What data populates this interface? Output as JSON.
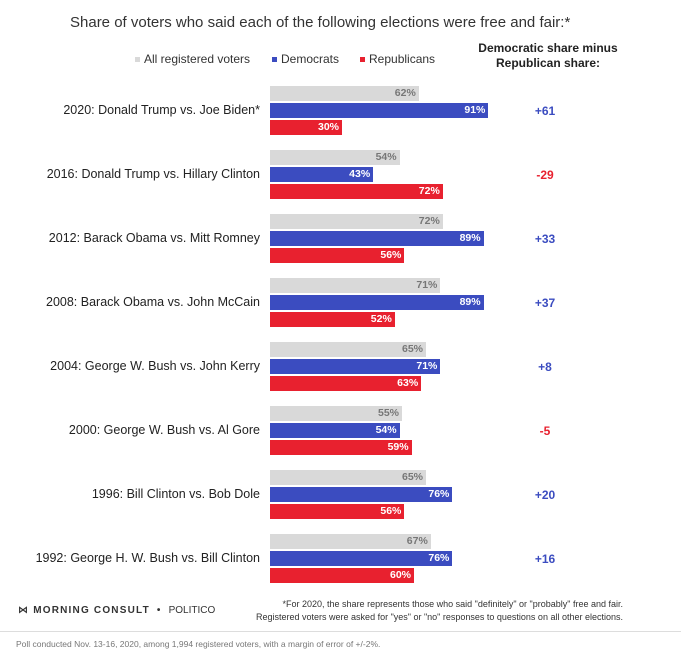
{
  "chart_data": {
    "type": "bar",
    "orientation": "horizontal",
    "title": "Share of voters who said each of the following elections were free and fair:*",
    "categories": [
      "2020: Donald Trump vs. Joe Biden*",
      "2016: Donald Trump vs. Hillary Clinton",
      "2012: Barack Obama vs. Mitt Romney",
      "2008: Barack Obama vs. John McCain",
      "2004: George W. Bush vs. John Kerry",
      "2000: George W. Bush vs. Al Gore",
      "1996: Bill Clinton vs. Bob Dole",
      "1992: George H. W. Bush vs. Bill Clinton"
    ],
    "series": [
      {
        "name": "All registered voters",
        "color": "#d9d9d9",
        "label_color": "#777777",
        "values": [
          62,
          54,
          72,
          71,
          65,
          55,
          65,
          67
        ]
      },
      {
        "name": "Democrats",
        "color": "#3b4cc0",
        "label_color": "#ffffff",
        "values": [
          91,
          43,
          89,
          89,
          71,
          54,
          76,
          76
        ]
      },
      {
        "name": "Republicans",
        "color": "#e8212f",
        "label_color": "#ffffff",
        "values": [
          30,
          72,
          56,
          52,
          63,
          59,
          56,
          60
        ]
      }
    ],
    "value_suffix": "%",
    "difference_header": [
      "Democratic share minus",
      "Republican share:"
    ],
    "differences": [
      "+61",
      "-29",
      "+33",
      "+37",
      "+8",
      "-5",
      "+20",
      "+16"
    ],
    "positive_color": "#3b4cc0",
    "negative_color": "#e8212f",
    "xlim": [
      0,
      100
    ]
  },
  "footer": {
    "logo": "MORNING CONSULT",
    "logo_sep": "•",
    "partner": "POLITICO",
    "note_line1": "*For 2020, the share represents those who said \"definitely\" or \"probably\" free and fair.",
    "note_line2": "Registered voters were asked for \"yes\" or \"no\" responses to questions on all other elections.",
    "poll": "Poll conducted Nov. 13-16, 2020, among 1,994 registered voters, with a margin of error of +/-2%."
  }
}
